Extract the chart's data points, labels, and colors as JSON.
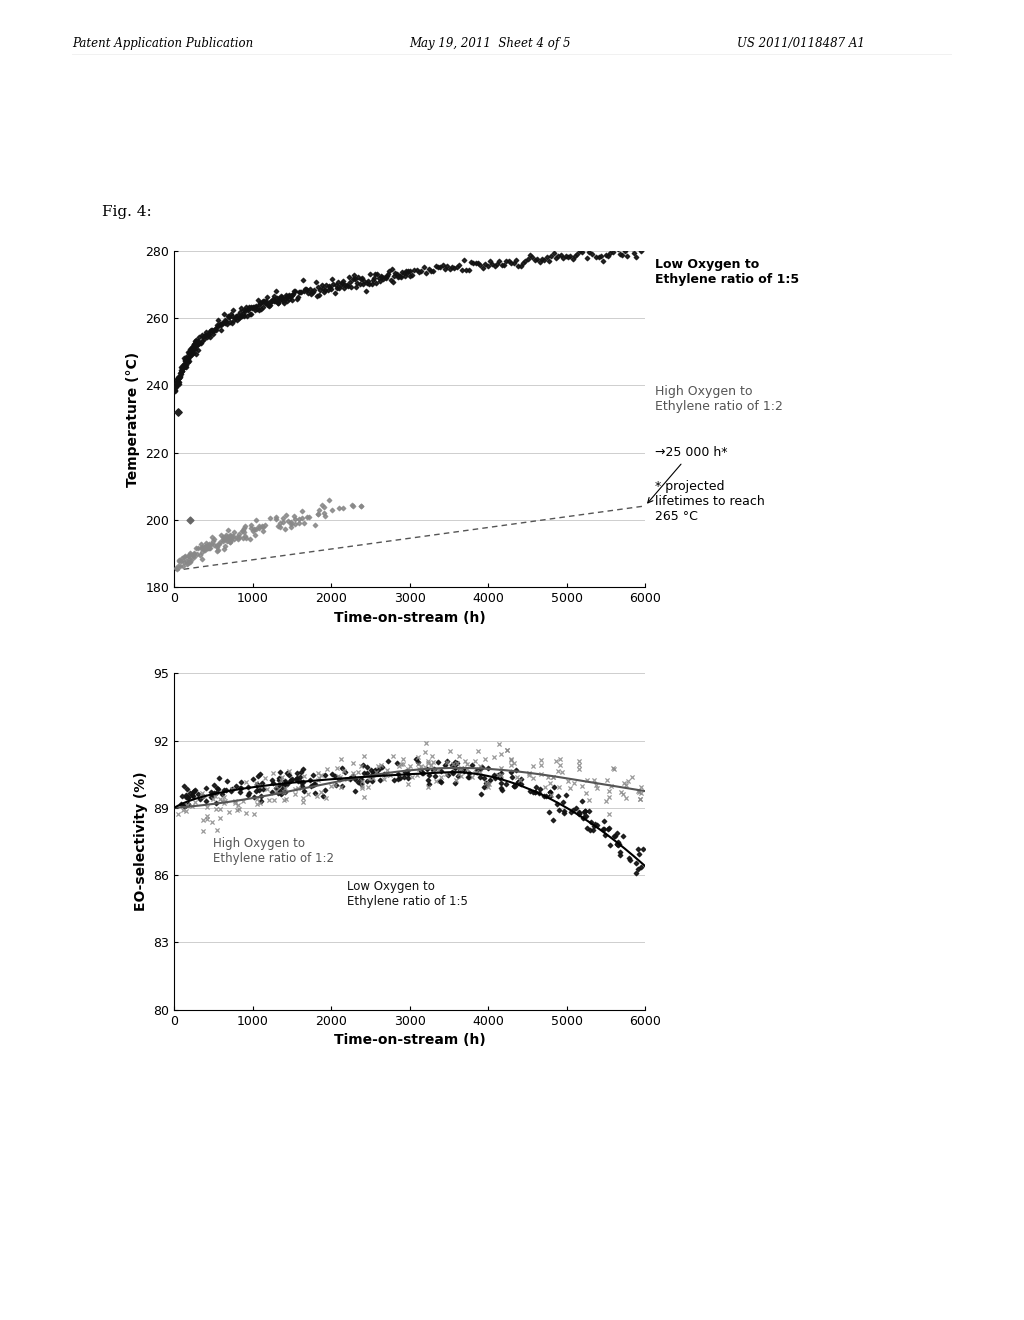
{
  "fig_label": "Fig. 4:",
  "header_left": "Patent Application Publication",
  "header_mid": "May 19, 2011  Sheet 4 of 5",
  "header_right": "US 2011/0118487 A1",
  "top_plot": {
    "xlabel": "Time-on-stream (h)",
    "ylabel": "Temperature (°C)",
    "xlim": [
      0,
      6000
    ],
    "ylim": [
      180,
      280
    ],
    "yticks": [
      180,
      200,
      220,
      240,
      260,
      280
    ],
    "xticks": [
      0,
      1000,
      2000,
      3000,
      4000,
      5000,
      6000
    ],
    "label1": "Low Oxygen to\nEthylene ratio of 1:5",
    "label2": "High Oxygen to\nEthylene ratio of 1:2",
    "annotation": "→25 000 h*",
    "note": "* projected\nlifetimes to reach\n265 °C"
  },
  "bottom_plot": {
    "xlabel": "Time-on-stream (h)",
    "ylabel": "EO-selectivity (%)",
    "xlim": [
      0,
      6000
    ],
    "ylim": [
      80,
      95
    ],
    "yticks": [
      80,
      83,
      86,
      89,
      92,
      95
    ],
    "xticks": [
      0,
      1000,
      2000,
      3000,
      4000,
      5000,
      6000
    ],
    "label1": "High Oxygen to\nEthylene ratio of 1:2",
    "label2": "Low Oxygen to\nEthylene ratio of 1:5"
  },
  "bg_color": "#ffffff",
  "plot_bg": "#ffffff"
}
